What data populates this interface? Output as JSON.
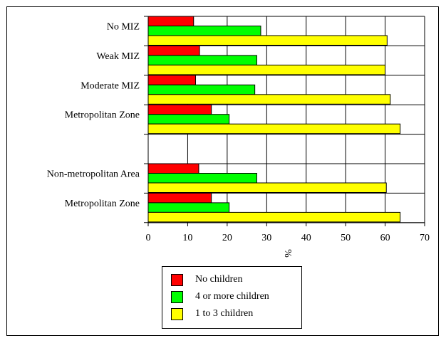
{
  "chart_data": {
    "type": "bar",
    "orientation": "horizontal",
    "title": "",
    "xlabel": "%",
    "ylabel": "",
    "xlim": [
      0,
      70
    ],
    "x_ticks": [
      0,
      10,
      20,
      30,
      40,
      50,
      60,
      70
    ],
    "grid": true,
    "legend_position": "bottom",
    "groups": [
      {
        "categories": [
          "No MIZ",
          "Weak MIZ",
          "Moderate MIZ",
          "Metropolitan Zone"
        ]
      },
      {
        "categories": [
          "Non-metropolitan Area",
          "Metropolitan Zone"
        ]
      }
    ],
    "series": [
      {
        "name": "No children",
        "color": "#ff0000",
        "values": [
          11.5,
          13,
          12,
          16,
          12.8,
          16
        ]
      },
      {
        "name": "4 or more children",
        "color": "#00ff00",
        "values": [
          28.5,
          27.5,
          27,
          20.5,
          27.5,
          20.5
        ]
      },
      {
        "name": "1 to 3 children",
        "color": "#ffff00",
        "values": [
          60.5,
          60,
          61.3,
          63.8,
          60.3,
          63.8
        ]
      }
    ]
  }
}
